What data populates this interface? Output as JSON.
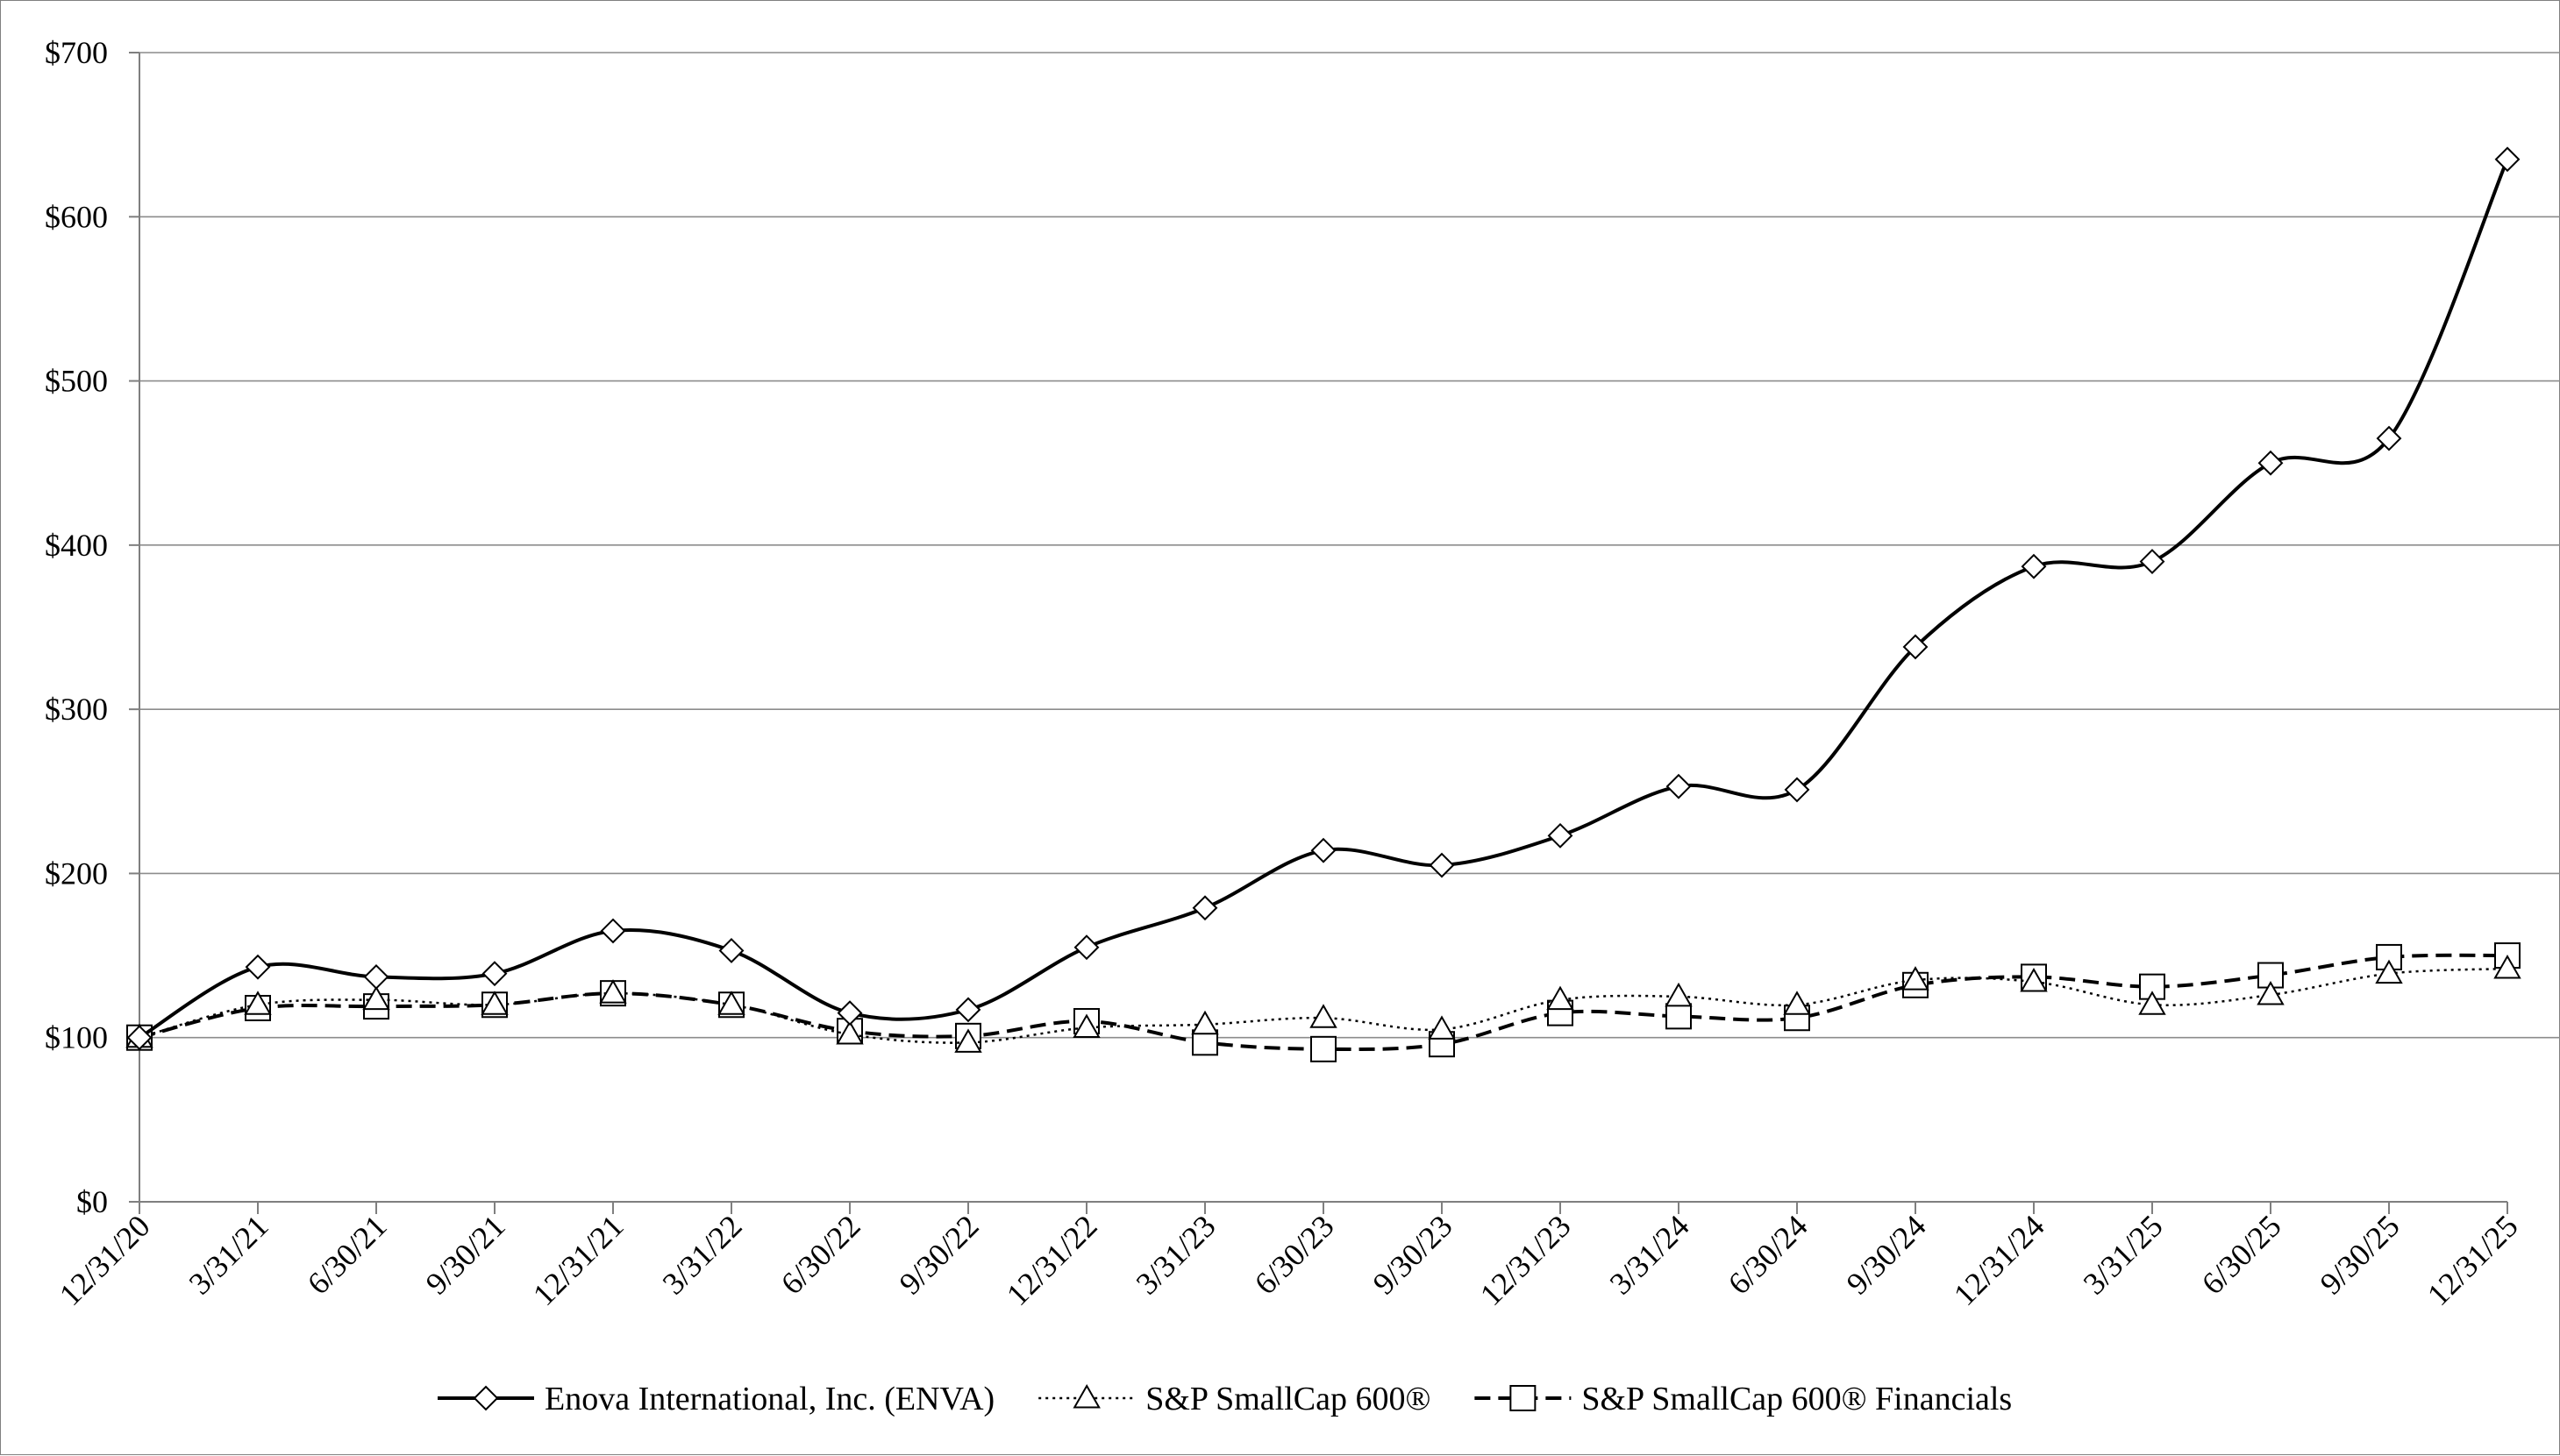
{
  "chart_data": {
    "type": "line",
    "title": "",
    "xlabel": "",
    "ylabel": "",
    "categories": [
      "12/31/20",
      "3/31/21",
      "6/30/21",
      "9/30/21",
      "12/31/21",
      "3/31/22",
      "6/30/22",
      "9/30/22",
      "12/31/22",
      "3/31/23",
      "6/30/23",
      "9/30/23",
      "12/31/23",
      "3/31/24",
      "6/30/24",
      "9/30/24",
      "12/31/24",
      "3/31/25",
      "6/30/25",
      "9/30/25",
      "12/31/25"
    ],
    "ylim": [
      0,
      700
    ],
    "y_ticks": [
      0,
      100,
      200,
      300,
      400,
      500,
      600,
      700
    ],
    "y_tick_labels": [
      "$0",
      "$100",
      "$200",
      "$300",
      "$400",
      "$500",
      "$600",
      "$700"
    ],
    "grid": true,
    "legend_position": "bottom",
    "series": [
      {
        "name": "Enova International, Inc. (ENVA)",
        "line_style": "solid",
        "marker": "diamond",
        "color": "#000000",
        "values": [
          100,
          143,
          137,
          139,
          165,
          153,
          115,
          117,
          155,
          179,
          214,
          205,
          223,
          253,
          251,
          338,
          387,
          390,
          450,
          465,
          635
        ]
      },
      {
        "name": "S&P SmallCap 600®",
        "line_style": "dotted",
        "marker": "triangle",
        "color": "#000000",
        "values": [
          100,
          120,
          123,
          120,
          127,
          120,
          102,
          97,
          106,
          108,
          112,
          105,
          123,
          125,
          120,
          135,
          134,
          120,
          126,
          139,
          142
        ]
      },
      {
        "name": "S&P SmallCap 600® Financials",
        "line_style": "dashed",
        "marker": "square",
        "color": "#000000",
        "values": [
          100,
          118,
          119,
          120,
          127,
          120,
          104,
          101,
          110,
          97,
          93,
          96,
          115,
          113,
          112,
          132,
          137,
          131,
          138,
          149,
          150
        ]
      }
    ]
  }
}
